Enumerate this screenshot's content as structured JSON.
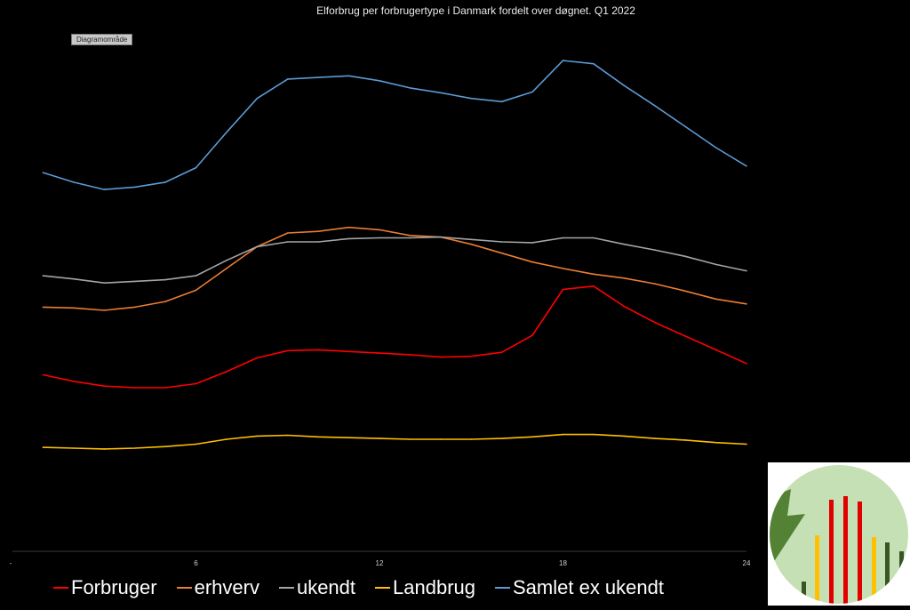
{
  "chart_data": {
    "type": "line",
    "title": "Elforbrug per forbrugertype i Danmark fordelt over døgnet. Q1 2022",
    "x": [
      1,
      2,
      3,
      4,
      5,
      6,
      7,
      8,
      9,
      10,
      11,
      12,
      13,
      14,
      15,
      16,
      17,
      18,
      19,
      20,
      21,
      22,
      23,
      24
    ],
    "xticks": [
      "-",
      "6",
      "12",
      "18",
      "24"
    ],
    "xlim": [
      0,
      24
    ],
    "series": [
      {
        "name": "Forbruger",
        "color": "#ff0000",
        "values": [
          219,
          211,
          205,
          203,
          203,
          208,
          223,
          240,
          249,
          250,
          248,
          246,
          244,
          241,
          242,
          247,
          268,
          325,
          329,
          304,
          284,
          267,
          250,
          233
        ]
      },
      {
        "name": "erhverv",
        "color": "#ed7d31",
        "values": [
          303,
          302,
          299,
          303,
          310,
          324,
          351,
          378,
          395,
          397,
          402,
          399,
          392,
          390,
          381,
          370,
          359,
          351,
          344,
          339,
          332,
          323,
          313,
          307
        ]
      },
      {
        "name": "ukendt",
        "color": "#a5a5a5",
        "values": [
          342,
          338,
          333,
          335,
          337,
          342,
          361,
          378,
          384,
          384,
          388,
          389,
          389,
          390,
          387,
          384,
          383,
          389,
          389,
          381,
          374,
          366,
          356,
          348
        ]
      },
      {
        "name": "Landbrug",
        "color": "#ffc000",
        "values": [
          129,
          128,
          127,
          128,
          130,
          133,
          139,
          143,
          144,
          142,
          141,
          140,
          139,
          139,
          139,
          140,
          142,
          145,
          145,
          143,
          140,
          138,
          135,
          133
        ]
      },
      {
        "name": "Samlet ex ukendt",
        "color": "#5b9bd5",
        "values": [
          470,
          458,
          449,
          452,
          458,
          476,
          520,
          562,
          586,
          588,
          590,
          584,
          575,
          569,
          562,
          558,
          570,
          609,
          605,
          578,
          553,
          527,
          501,
          478
        ]
      }
    ]
  },
  "ui": {
    "area_tag": "Diagramområde",
    "logo_icon": "bar-chart-logo-icon"
  }
}
